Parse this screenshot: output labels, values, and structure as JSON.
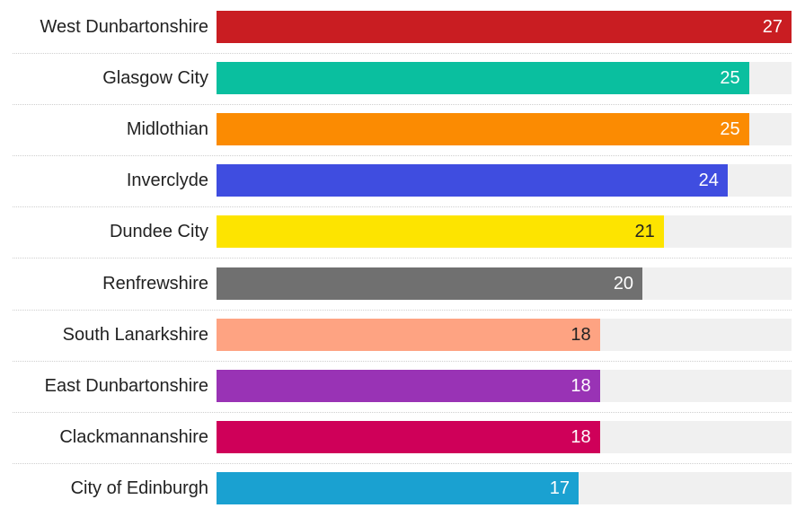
{
  "chart_data": {
    "type": "bar",
    "orientation": "horizontal",
    "categories": [
      "West Dunbartonshire",
      "Glasgow City",
      "Midlothian",
      "Inverclyde",
      "Dundee City",
      "Renfrewshire",
      "South Lanarkshire",
      "East Dunbartonshire",
      "Clackmannanshire",
      "City of Edinburgh"
    ],
    "values": [
      27,
      25,
      25,
      24,
      21,
      20,
      18,
      18,
      18,
      17
    ],
    "colors": [
      "#c91d22",
      "#0abf9f",
      "#fb8b02",
      "#3f4de0",
      "#fde400",
      "#707070",
      "#fea382",
      "#9933b5",
      "#cf0059",
      "#1aa1d1"
    ],
    "label_colors": [
      "#ffffff",
      "#ffffff",
      "#ffffff",
      "#ffffff",
      "#222222",
      "#ffffff",
      "#222222",
      "#ffffff",
      "#ffffff",
      "#ffffff"
    ],
    "track_color": "#f0f0f0",
    "xlim": [
      0,
      27
    ],
    "title": "",
    "xlabel": "",
    "ylabel": "",
    "data_labels": true,
    "grid": false,
    "legend": "none"
  }
}
